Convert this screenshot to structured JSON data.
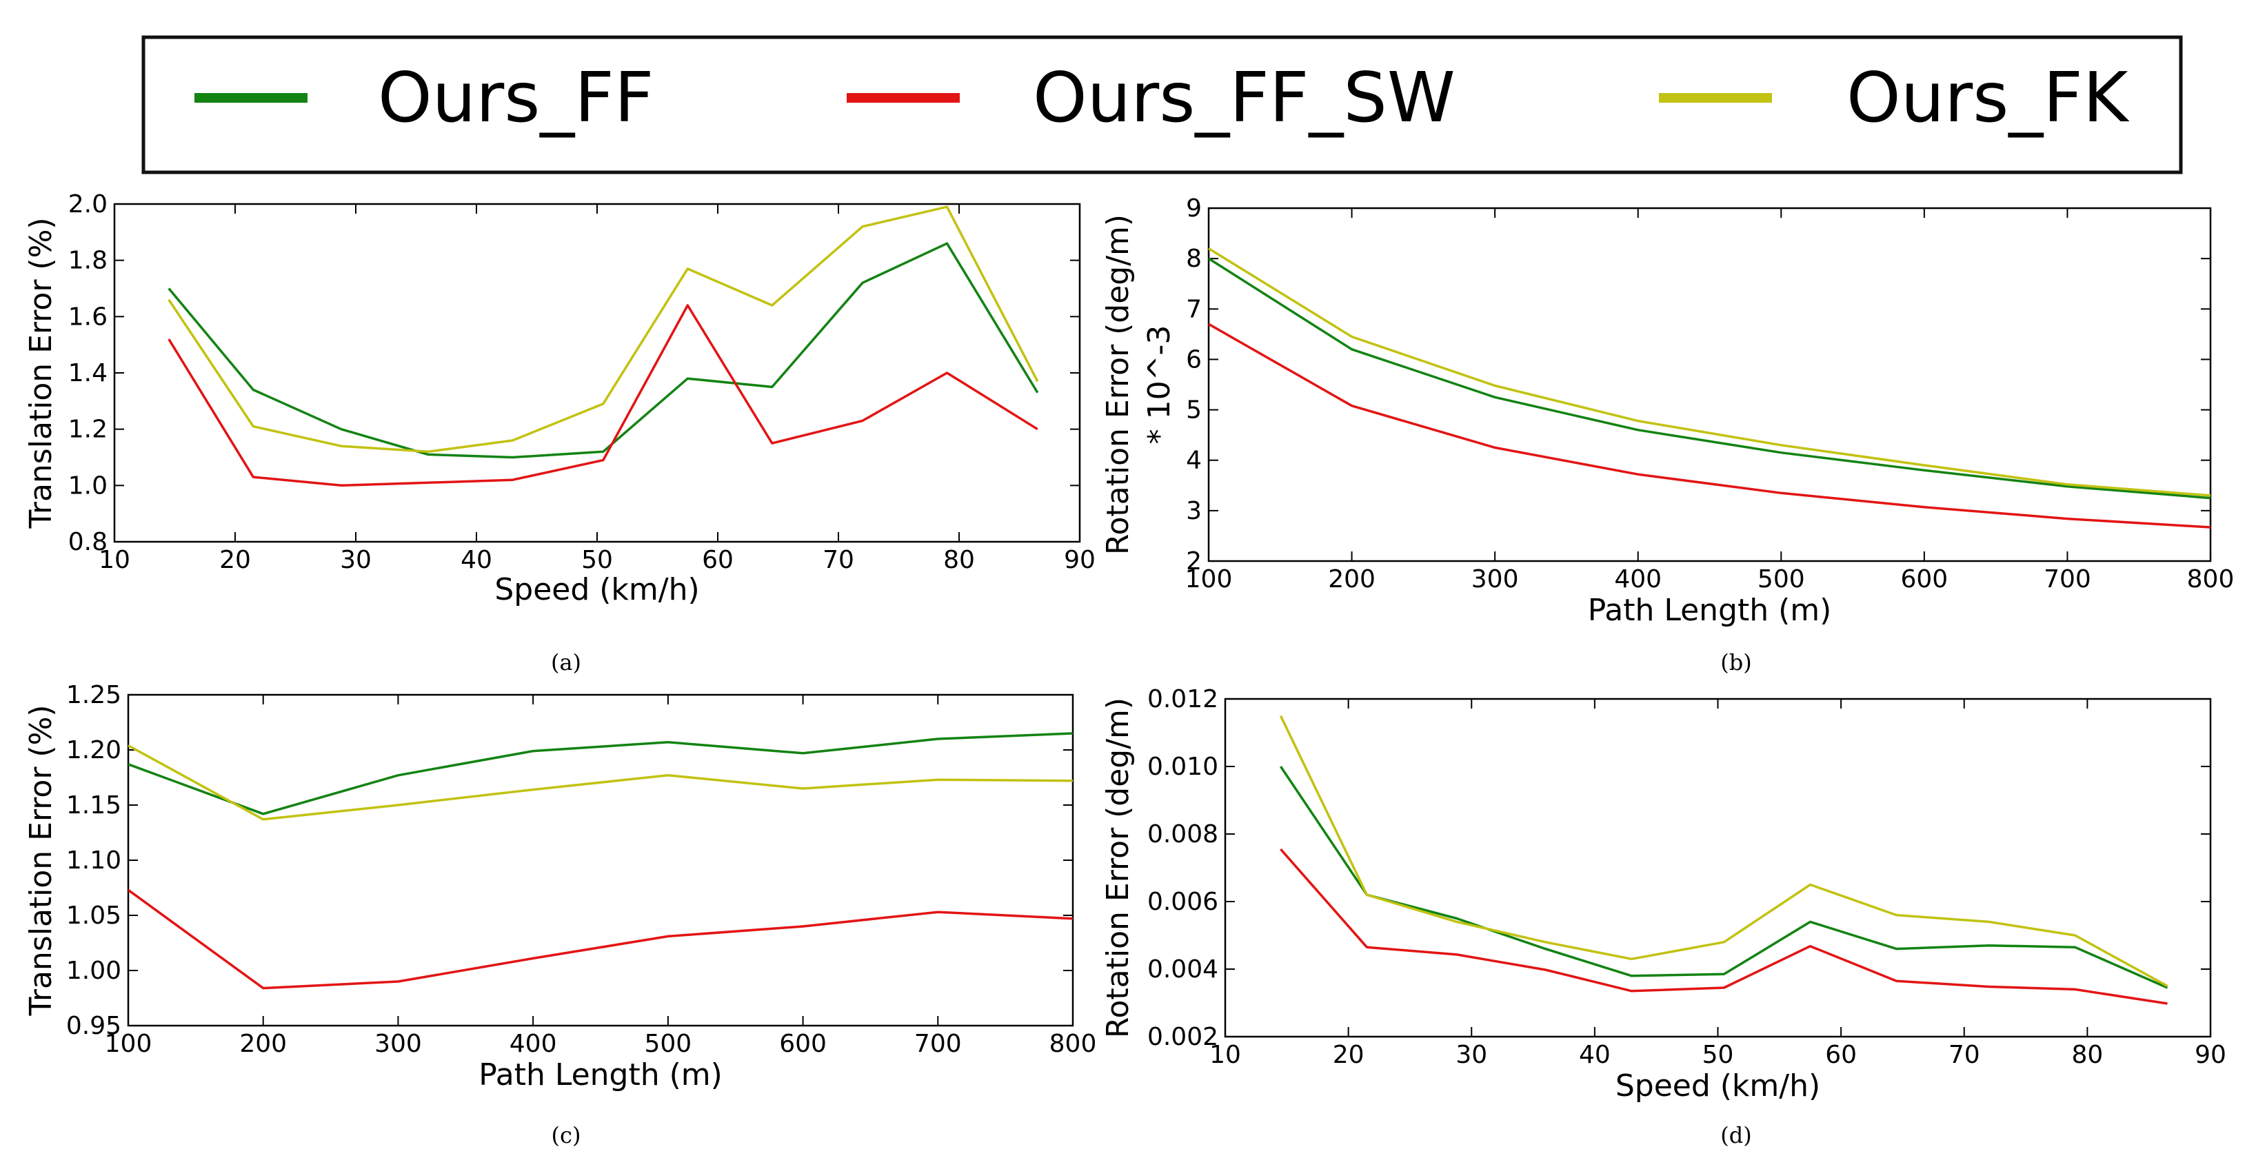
{
  "legend": {
    "entries": [
      {
        "name": "Ours_FF",
        "color": "#138313"
      },
      {
        "name": "Ours_FF_SW",
        "color": "#e31414"
      },
      {
        "name": "Ours_FK",
        "color": "#c2c212"
      }
    ]
  },
  "chart_data": [
    {
      "id": "a",
      "type": "line",
      "caption": "(a)",
      "xlabel": "Speed (km/h)",
      "ylabel": "Translation Error (%)",
      "xlim": [
        10,
        90
      ],
      "ylim": [
        0.8,
        2.0
      ],
      "xticks": [
        "10",
        "20",
        "30",
        "40",
        "50",
        "60",
        "70",
        "80",
        "90"
      ],
      "yticks": [
        "0.8",
        "1.0",
        "1.2",
        "1.4",
        "1.6",
        "1.8",
        "2.0"
      ],
      "x": [
        14.5,
        21.5,
        28.8,
        36,
        43,
        50.5,
        57.5,
        64.5,
        72,
        79,
        86.5
      ],
      "series": [
        {
          "name": "Ours_FF",
          "color": "#138313",
          "values": [
            1.7,
            1.34,
            1.2,
            1.11,
            1.1,
            1.12,
            1.38,
            1.35,
            1.72,
            1.86,
            1.33
          ]
        },
        {
          "name": "Ours_FF_SW",
          "color": "#e31414",
          "values": [
            1.52,
            1.03,
            1.0,
            1.01,
            1.02,
            1.09,
            1.64,
            1.15,
            1.23,
            1.4,
            1.2
          ]
        },
        {
          "name": "Ours_FK",
          "color": "#c2c212",
          "values": [
            1.66,
            1.21,
            1.14,
            1.12,
            1.16,
            1.29,
            1.77,
            1.64,
            1.92,
            1.99,
            1.37
          ]
        }
      ]
    },
    {
      "id": "b",
      "type": "line",
      "caption": "(b)",
      "xlabel": "Path Length (m)",
      "ylabel": "Rotation Error (deg/m)",
      "ylabel2": "* 10^-3",
      "xlim": [
        100,
        800
      ],
      "ylim": [
        2,
        9
      ],
      "xticks": [
        "100",
        "200",
        "300",
        "400",
        "500",
        "600",
        "700",
        "800"
      ],
      "yticks": [
        "2",
        "3",
        "4",
        "5",
        "6",
        "7",
        "8",
        "9"
      ],
      "x": [
        100,
        200,
        300,
        400,
        500,
        600,
        700,
        800
      ],
      "series": [
        {
          "name": "Ours_FF",
          "color": "#138313",
          "values": [
            8.0,
            6.2,
            5.25,
            4.6,
            4.15,
            3.8,
            3.48,
            3.25
          ]
        },
        {
          "name": "Ours_FF_SW",
          "color": "#e31414",
          "values": [
            6.7,
            5.08,
            4.25,
            3.72,
            3.35,
            3.07,
            2.84,
            2.67
          ]
        },
        {
          "name": "Ours_FK",
          "color": "#c2c212",
          "values": [
            8.2,
            6.45,
            5.48,
            4.78,
            4.3,
            3.9,
            3.52,
            3.3
          ]
        }
      ]
    },
    {
      "id": "c",
      "type": "line",
      "caption": "(c)",
      "xlabel": "Path Length (m)",
      "ylabel": "Translation Error (%)",
      "xlim": [
        100,
        800
      ],
      "ylim": [
        0.95,
        1.25
      ],
      "xticks": [
        "100",
        "200",
        "300",
        "400",
        "500",
        "600",
        "700",
        "800"
      ],
      "yticks": [
        "0.95",
        "1.00",
        "1.05",
        "1.10",
        "1.15",
        "1.20",
        "1.25"
      ],
      "x": [
        100,
        200,
        300,
        400,
        500,
        600,
        700,
        800
      ],
      "series": [
        {
          "name": "Ours_FF",
          "color": "#138313",
          "values": [
            1.187,
            1.142,
            1.177,
            1.199,
            1.207,
            1.197,
            1.21,
            1.215
          ]
        },
        {
          "name": "Ours_FF_SW",
          "color": "#e31414",
          "values": [
            1.073,
            0.984,
            0.99,
            1.011,
            1.031,
            1.04,
            1.053,
            1.047
          ]
        },
        {
          "name": "Ours_FK",
          "color": "#c2c212",
          "values": [
            1.204,
            1.137,
            1.15,
            1.164,
            1.177,
            1.165,
            1.173,
            1.172
          ]
        }
      ]
    },
    {
      "id": "d",
      "type": "line",
      "caption": "(d)",
      "xlabel": "Speed (km/h)",
      "ylabel": "Rotation Error (deg/m)",
      "xlim": [
        10,
        90
      ],
      "ylim": [
        0.002,
        0.012
      ],
      "xticks": [
        "10",
        "20",
        "30",
        "40",
        "50",
        "60",
        "70",
        "80",
        "90"
      ],
      "yticks": [
        "0.002",
        "0.004",
        "0.006",
        "0.008",
        "0.010",
        "0.012"
      ],
      "x": [
        14.5,
        21.5,
        28.8,
        36,
        43,
        50.5,
        57.5,
        64.5,
        72,
        79,
        86.5
      ],
      "series": [
        {
          "name": "Ours_FF",
          "color": "#138313",
          "values": [
            0.01,
            0.0062,
            0.0055,
            0.0046,
            0.0038,
            0.00385,
            0.0054,
            0.0046,
            0.0047,
            0.00465,
            0.00345
          ]
        },
        {
          "name": "Ours_FF_SW",
          "color": "#e31414",
          "values": [
            0.00755,
            0.00465,
            0.00443,
            0.00398,
            0.00335,
            0.00345,
            0.00468,
            0.00365,
            0.00348,
            0.0034,
            0.00298
          ]
        },
        {
          "name": "Ours_FK",
          "color": "#c2c212",
          "values": [
            0.0115,
            0.0062,
            0.0054,
            0.0048,
            0.0043,
            0.0048,
            0.0065,
            0.0056,
            0.0054,
            0.005,
            0.0035
          ]
        }
      ]
    }
  ]
}
